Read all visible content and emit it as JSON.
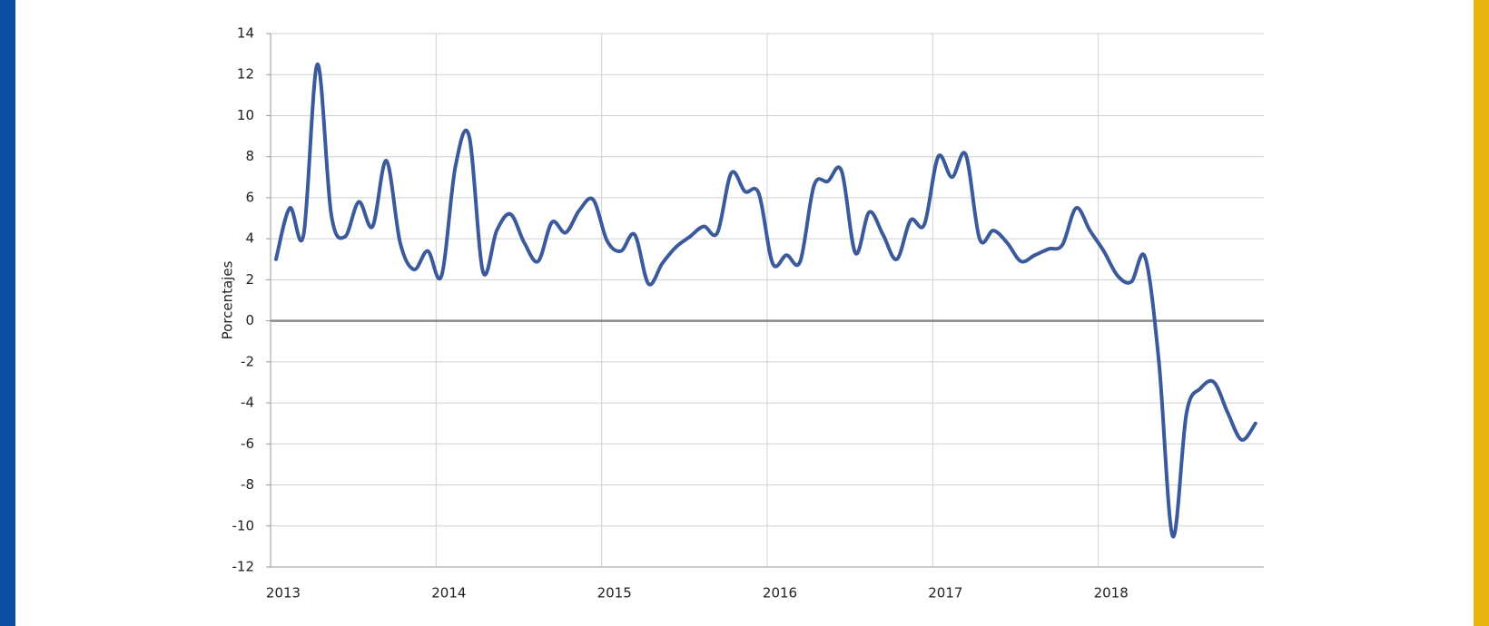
{
  "chart_data": {
    "type": "line",
    "y_label": "Porcentajes",
    "categories": [
      "2013",
      null,
      null,
      null,
      null,
      null,
      null,
      null,
      null,
      null,
      null,
      null,
      "2014",
      null,
      null,
      null,
      null,
      null,
      null,
      null,
      null,
      null,
      null,
      null,
      "2015",
      null,
      null,
      null,
      null,
      null,
      null,
      null,
      null,
      null,
      null,
      null,
      "2016",
      null,
      null,
      null,
      null,
      null,
      null,
      null,
      null,
      null,
      null,
      null,
      "2017",
      null,
      null,
      null,
      null,
      null,
      null,
      null,
      null,
      null,
      null,
      null,
      "2018",
      null,
      null,
      null,
      null,
      null,
      null,
      null,
      null,
      null,
      null,
      null
    ],
    "series": [
      {
        "color": "#3a5a9b",
        "values": [
          3.0,
          5.5,
          4.2,
          12.5,
          5.2,
          4.1,
          5.8,
          4.6,
          7.8,
          3.8,
          2.5,
          3.4,
          2.2,
          7.5,
          9.0,
          2.4,
          4.4,
          5.2,
          3.8,
          2.9,
          4.8,
          4.3,
          5.4,
          5.9,
          3.9,
          3.4,
          4.2,
          1.8,
          2.8,
          3.6,
          4.1,
          4.6,
          4.3,
          7.2,
          6.3,
          6.2,
          2.8,
          3.2,
          2.9,
          6.6,
          6.8,
          7.3,
          3.3,
          5.3,
          4.2,
          3.0,
          4.9,
          4.7,
          8.0,
          7.0,
          8.1,
          4.0,
          4.4,
          3.8,
          2.9,
          3.2,
          3.5,
          3.7,
          5.5,
          4.4,
          3.4,
          2.2,
          1.9,
          3.1,
          -2.0,
          -10.5,
          -4.5,
          -3.3,
          -3.0,
          -4.5,
          -5.8,
          -5.0
        ]
      }
    ],
    "ylim": [
      -12,
      14
    ],
    "yticks": [
      -12,
      -10,
      -8,
      -6,
      -4,
      -2,
      0,
      2,
      4,
      6,
      8,
      10,
      12,
      14
    ],
    "grid": true
  }
}
